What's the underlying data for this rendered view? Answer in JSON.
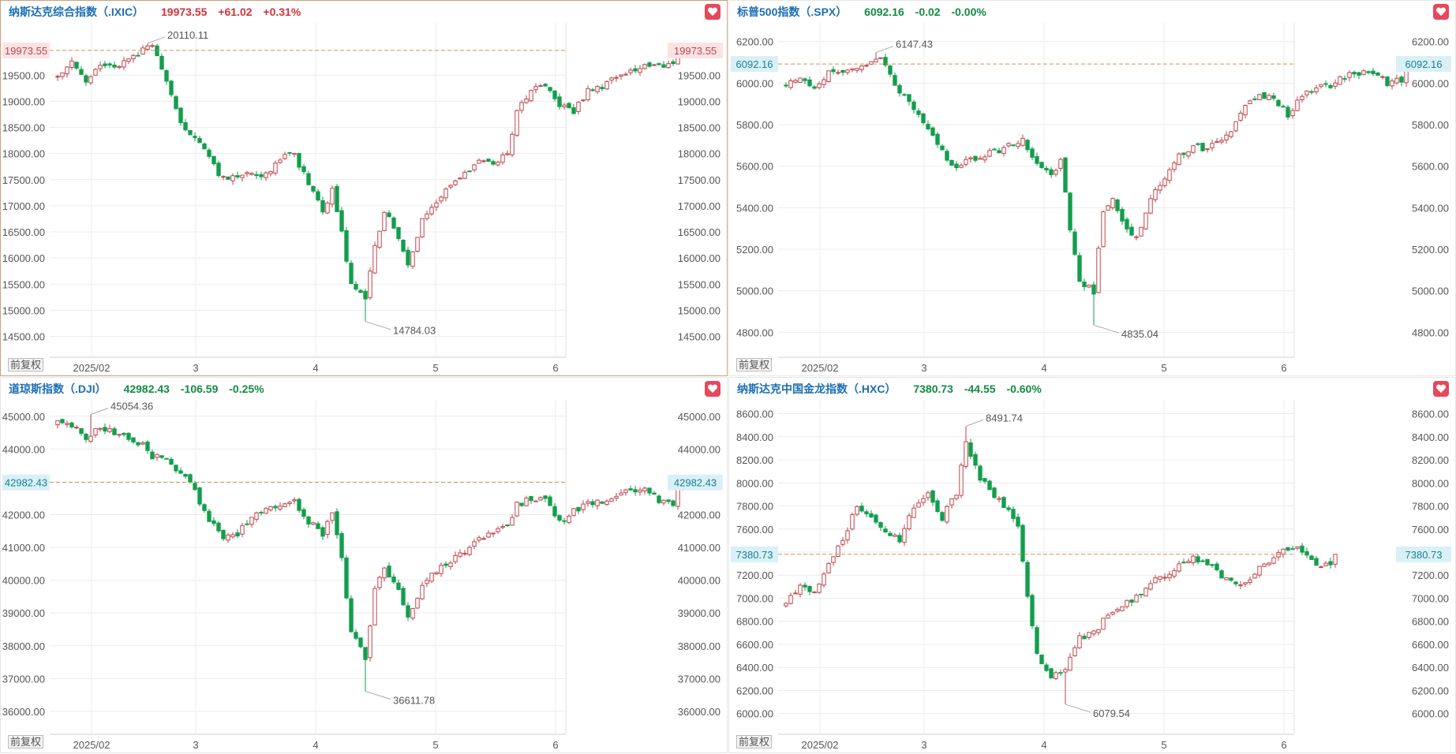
{
  "colors": {
    "up": "#c0454c",
    "down": "#139e4d",
    "grid": "#ececec",
    "ref": "#c7955a",
    "name": "#1c6fb4"
  },
  "x_ticks": [
    "2025/02",
    "3",
    "4",
    "5",
    "6"
  ],
  "adjust_label": "前复权",
  "panels": [
    {
      "name": "纳斯达克综合指数（.IXIC）",
      "price": "19973.55",
      "change": "+61.02",
      "pct": "+0.31%",
      "dir": "up",
      "last_label": "19973.55",
      "last_value": 19973.55,
      "ylim": [
        14100,
        20500
      ],
      "y_ticks": [
        "19500.00",
        "19000.00",
        "18500.00",
        "18000.00",
        "17500.00",
        "17000.00",
        "16500.00",
        "16000.00",
        "15500.00",
        "15000.00",
        "14500.00"
      ],
      "hi": {
        "label": "20110.11",
        "value": 20110.11,
        "bar": 19
      },
      "lo": {
        "label": "14784.03",
        "value": 14784.03,
        "bar": 65
      },
      "anchors": [
        [
          0,
          19500
        ],
        [
          3,
          19750
        ],
        [
          6,
          19400
        ],
        [
          9,
          19700
        ],
        [
          12,
          19650
        ],
        [
          15,
          19800
        ],
        [
          18,
          20000
        ],
        [
          20,
          20040
        ],
        [
          23,
          19400
        ],
        [
          26,
          18600
        ],
        [
          29,
          18300
        ],
        [
          32,
          17900
        ],
        [
          35,
          17500
        ],
        [
          38,
          17550
        ],
        [
          41,
          17600
        ],
        [
          44,
          17600
        ],
        [
          47,
          17900
        ],
        [
          50,
          18000
        ],
        [
          53,
          17400
        ],
        [
          56,
          16900
        ],
        [
          58,
          17300
        ],
        [
          60,
          16500
        ],
        [
          62,
          15500
        ],
        [
          65,
          15200
        ],
        [
          67,
          16200
        ],
        [
          69,
          16900
        ],
        [
          72,
          16400
        ],
        [
          74,
          15900
        ],
        [
          77,
          16700
        ],
        [
          80,
          17100
        ],
        [
          83,
          17400
        ],
        [
          86,
          17600
        ],
        [
          89,
          17900
        ],
        [
          92,
          17800
        ],
        [
          95,
          18000
        ],
        [
          97,
          18800
        ],
        [
          100,
          19200
        ],
        [
          103,
          19300
        ],
        [
          106,
          18900
        ],
        [
          109,
          18800
        ],
        [
          112,
          19200
        ],
        [
          115,
          19300
        ],
        [
          118,
          19500
        ],
        [
          121,
          19600
        ],
        [
          124,
          19700
        ],
        [
          127,
          19650
        ],
        [
          130,
          19700
        ],
        [
          131,
          19850
        ],
        [
          132,
          19973
        ]
      ]
    },
    {
      "name": "标普500指数（.SPX）",
      "price": "6092.16",
      "change": "-0.02",
      "pct": "-0.00%",
      "dir": "dn",
      "last_label": "6092.16",
      "last_value": 6092.16,
      "ylim": [
        4680,
        6290
      ],
      "y_ticks": [
        "6200.00",
        "6000.00",
        "5800.00",
        "5600.00",
        "5400.00",
        "5200.00",
        "5000.00",
        "4800.00"
      ],
      "hi": {
        "label": "6147.43",
        "value": 6147.43,
        "bar": 19
      },
      "lo": {
        "label": "4835.04",
        "value": 4835.04,
        "bar": 65
      },
      "anchors": [
        [
          0,
          6000
        ],
        [
          3,
          6040
        ],
        [
          6,
          5980
        ],
        [
          9,
          6050
        ],
        [
          12,
          6040
        ],
        [
          15,
          6070
        ],
        [
          18,
          6110
        ],
        [
          20,
          6110
        ],
        [
          23,
          6000
        ],
        [
          26,
          5900
        ],
        [
          29,
          5820
        ],
        [
          32,
          5700
        ],
        [
          35,
          5600
        ],
        [
          38,
          5620
        ],
        [
          41,
          5650
        ],
        [
          44,
          5670
        ],
        [
          47,
          5700
        ],
        [
          50,
          5730
        ],
        [
          53,
          5620
        ],
        [
          56,
          5550
        ],
        [
          58,
          5640
        ],
        [
          60,
          5300
        ],
        [
          62,
          5050
        ],
        [
          65,
          5000
        ],
        [
          67,
          5380
        ],
        [
          69,
          5450
        ],
        [
          72,
          5300
        ],
        [
          74,
          5250
        ],
        [
          77,
          5450
        ],
        [
          80,
          5550
        ],
        [
          83,
          5650
        ],
        [
          86,
          5700
        ],
        [
          89,
          5680
        ],
        [
          92,
          5730
        ],
        [
          95,
          5800
        ],
        [
          97,
          5900
        ],
        [
          100,
          5950
        ],
        [
          103,
          5920
        ],
        [
          106,
          5850
        ],
        [
          109,
          5950
        ],
        [
          112,
          5980
        ],
        [
          115,
          5990
        ],
        [
          118,
          6030
        ],
        [
          121,
          6050
        ],
        [
          124,
          6060
        ],
        [
          127,
          6000
        ],
        [
          130,
          6020
        ],
        [
          131,
          6080
        ],
        [
          132,
          6092
        ]
      ]
    },
    {
      "name": "道琼斯指数（.DJI）",
      "price": "42982.43",
      "change": "-106.59",
      "pct": "-0.25%",
      "dir": "dn",
      "last_label": "42982.43",
      "last_value": 42982.43,
      "ylim": [
        35300,
        45500
      ],
      "y_ticks": [
        "45000.00",
        "44000.00",
        "43000.00",
        "42000.00",
        "41000.00",
        "40000.00",
        "39000.00",
        "38000.00",
        "37000.00",
        "36000.00"
      ],
      "hi": {
        "label": "45054.36",
        "value": 45054.36,
        "bar": 7
      },
      "lo": {
        "label": "36611.78",
        "value": 36611.78,
        "bar": 65
      },
      "anchors": [
        [
          0,
          44800
        ],
        [
          3,
          44700
        ],
        [
          6,
          44300
        ],
        [
          9,
          44700
        ],
        [
          12,
          44500
        ],
        [
          15,
          44300
        ],
        [
          18,
          44100
        ],
        [
          20,
          43800
        ],
        [
          23,
          43600
        ],
        [
          26,
          43300
        ],
        [
          29,
          42700
        ],
        [
          32,
          41800
        ],
        [
          35,
          41300
        ],
        [
          38,
          41400
        ],
        [
          41,
          41900
        ],
        [
          44,
          42100
        ],
        [
          47,
          42300
        ],
        [
          50,
          42400
        ],
        [
          53,
          41800
        ],
        [
          56,
          41400
        ],
        [
          58,
          42000
        ],
        [
          60,
          40600
        ],
        [
          62,
          38500
        ],
        [
          65,
          37600
        ],
        [
          67,
          39800
        ],
        [
          69,
          40400
        ],
        [
          72,
          39700
        ],
        [
          74,
          38900
        ],
        [
          77,
          39800
        ],
        [
          80,
          40300
        ],
        [
          83,
          40600
        ],
        [
          86,
          40900
        ],
        [
          89,
          41200
        ],
        [
          92,
          41500
        ],
        [
          95,
          41700
        ],
        [
          97,
          42300
        ],
        [
          100,
          42500
        ],
        [
          103,
          42400
        ],
        [
          106,
          41800
        ],
        [
          109,
          42100
        ],
        [
          112,
          42300
        ],
        [
          115,
          42400
        ],
        [
          118,
          42600
        ],
        [
          121,
          42700
        ],
        [
          124,
          42800
        ],
        [
          127,
          42400
        ],
        [
          130,
          42300
        ],
        [
          131,
          42800
        ],
        [
          132,
          42982
        ]
      ]
    },
    {
      "name": "纳斯达克中国金龙指数（.HXC）",
      "price": "7380.73",
      "change": "-44.55",
      "pct": "-0.60%",
      "dir": "dn",
      "last_label": "7380.73",
      "last_value": 7380.73,
      "ylim": [
        5820,
        8720
      ],
      "y_ticks": [
        "8600.00",
        "8400.00",
        "8200.00",
        "8000.00",
        "7800.00",
        "7600.00",
        "7400.00",
        "7200.00",
        "7000.00",
        "6800.00",
        "6600.00",
        "6400.00",
        "6200.00",
        "6000.00"
      ],
      "hi": {
        "label": "8491.74",
        "value": 8491.74,
        "bar": 38
      },
      "lo": {
        "label": "6079.54",
        "value": 6079.54,
        "bar": 59
      },
      "anchors": [
        [
          0,
          6950
        ],
        [
          3,
          7100
        ],
        [
          6,
          7050
        ],
        [
          9,
          7300
        ],
        [
          12,
          7500
        ],
        [
          15,
          7800
        ],
        [
          18,
          7700
        ],
        [
          21,
          7600
        ],
        [
          24,
          7500
        ],
        [
          27,
          7800
        ],
        [
          30,
          7900
        ],
        [
          33,
          7700
        ],
        [
          36,
          7900
        ],
        [
          38,
          8350
        ],
        [
          41,
          8050
        ],
        [
          44,
          7900
        ],
        [
          47,
          7750
        ],
        [
          49,
          7600
        ],
        [
          50,
          7300
        ],
        [
          53,
          6500
        ],
        [
          56,
          6300
        ],
        [
          59,
          6400
        ],
        [
          62,
          6650
        ],
        [
          65,
          6700
        ],
        [
          68,
          6850
        ],
        [
          71,
          6950
        ],
        [
          74,
          7000
        ],
        [
          77,
          7150
        ],
        [
          80,
          7200
        ],
        [
          83,
          7300
        ],
        [
          86,
          7350
        ],
        [
          89,
          7300
        ],
        [
          92,
          7200
        ],
        [
          95,
          7100
        ],
        [
          98,
          7150
        ],
        [
          101,
          7300
        ],
        [
          104,
          7400
        ],
        [
          107,
          7450
        ],
        [
          110,
          7350
        ],
        [
          113,
          7250
        ],
        [
          115,
          7300
        ],
        [
          116,
          7380
        ]
      ]
    }
  ]
}
